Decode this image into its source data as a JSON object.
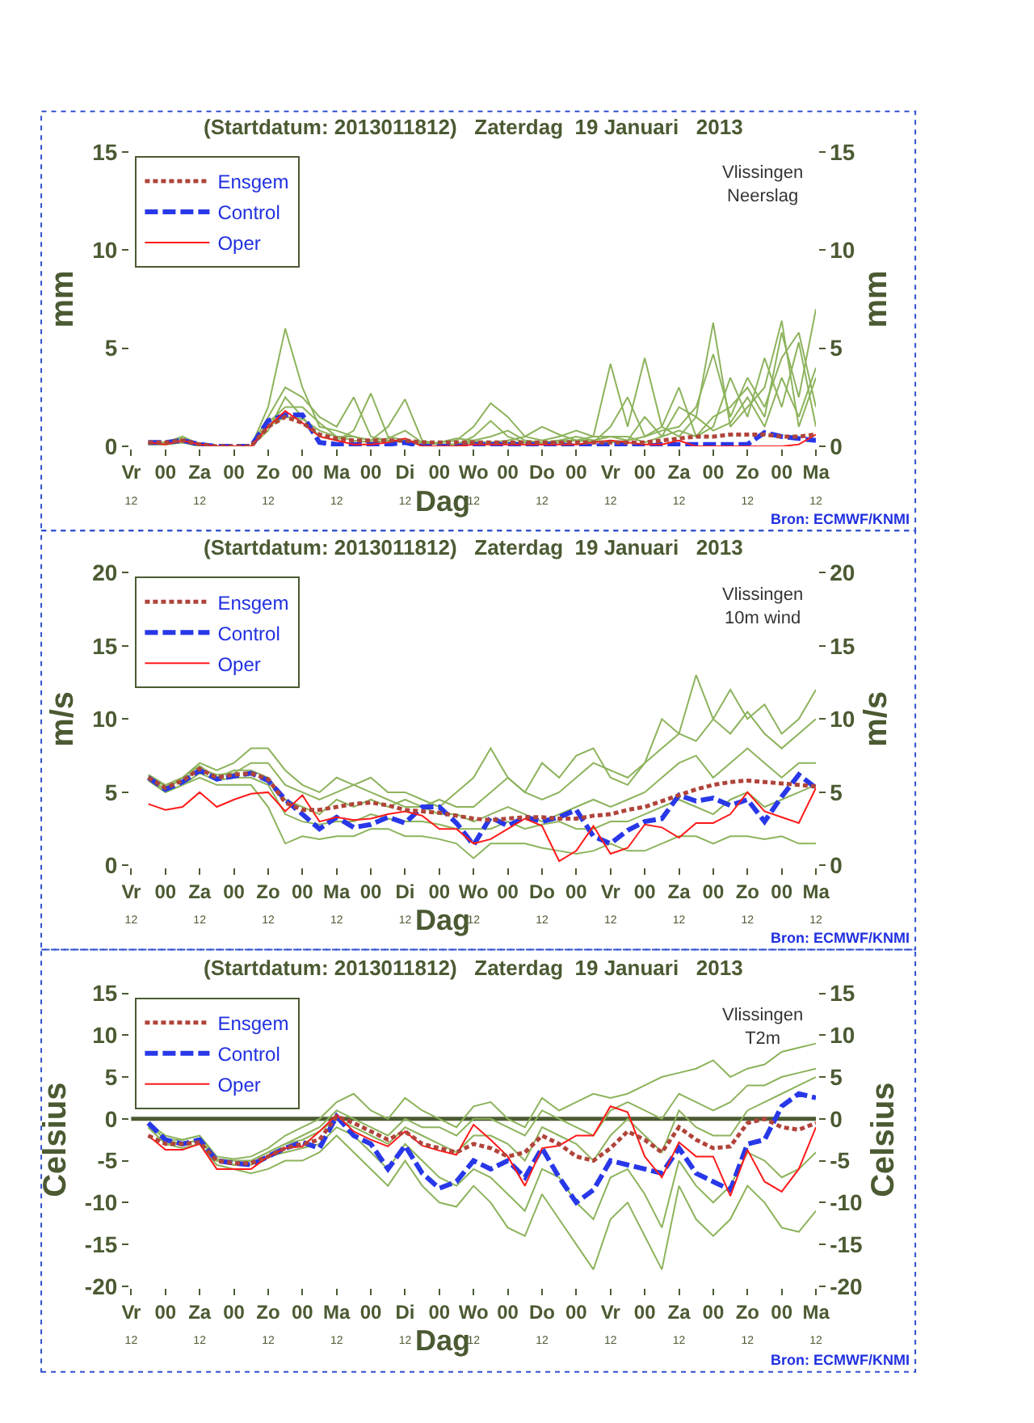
{
  "chart_data": [
    {
      "type": "line",
      "title": "(Startdatum: 2013011812)   Zaterdag  19 Januari   2013",
      "xlabel": "Dag",
      "ylabel": "mm",
      "y2label": "mm",
      "legend": "top left",
      "grid": false,
      "annotations": [
        "Vlissingen\nNeerslag",
        "Bron: ECMWF/KNMI"
      ],
      "categories": [
        "Vr\n12",
        null,
        "00",
        null,
        "Za\n12",
        null,
        "00",
        null,
        "Zo\n12",
        null,
        "00",
        null,
        "Ma\n12",
        null,
        "00",
        null,
        "Di\n12",
        null,
        "00",
        null,
        "Wo\n12",
        null,
        "00",
        null,
        "Do\n12",
        null,
        "00",
        null,
        "Vr\n12",
        null,
        "00",
        null,
        "Za\n12",
        null,
        "00",
        null,
        "Zo\n12",
        null,
        "00",
        null,
        "Ma\n12"
      ],
      "ylim": [
        0,
        15
      ],
      "yticks": [
        0,
        5,
        10,
        15
      ],
      "y2lim": [
        0,
        15
      ],
      "y2ticks": [
        0,
        5,
        10,
        15
      ],
      "series": [
        {
          "color": "#8db35c",
          "line_style": "solid",
          "values": [
            null,
            0.2,
            0.2,
            0.5,
            0.1,
            0,
            0,
            0,
            2,
            6,
            3,
            1,
            0.8,
            0.5,
            0.3,
            0.4,
            0.8,
            0.2,
            0.1,
            0.1,
            0.3,
            0.5,
            0.8,
            0.3,
            0.2,
            0.3,
            0.3,
            0.5,
            4.2,
            1,
            4.5,
            1,
            0.5,
            1.5,
            6.3,
            1,
            2,
            3,
            6.4,
            1,
            3.5
          ]
        },
        {
          "color": "#8db35c",
          "line_style": "solid",
          "values": [
            null,
            0.2,
            0.1,
            0.3,
            0.1,
            0,
            0,
            0,
            1.5,
            3,
            2.5,
            1.5,
            1,
            2.5,
            0.5,
            0.3,
            0.3,
            0.1,
            0.2,
            0.3,
            1,
            2.2,
            1.5,
            0.5,
            0.3,
            0.5,
            0.8,
            0.5,
            0.5,
            0.3,
            0.5,
            0.8,
            1,
            2,
            4.7,
            1.5,
            3.5,
            2,
            4.5,
            5.8,
            2
          ]
        },
        {
          "color": "#8db35c",
          "line_style": "solid",
          "values": [
            null,
            0.1,
            0.1,
            0.2,
            0,
            0,
            0,
            0,
            0.8,
            2.5,
            1.5,
            0.5,
            0.3,
            0.8,
            2.7,
            0.5,
            0.3,
            0.2,
            0.1,
            0.1,
            0.5,
            1.3,
            0.5,
            0.2,
            0.1,
            0.2,
            0.3,
            0.3,
            0.5,
            0.5,
            0.2,
            0.5,
            0.8,
            0.5,
            1.5,
            2,
            3,
            1.5,
            5.8,
            2.5,
            7
          ]
        },
        {
          "color": "#8db35c",
          "line_style": "solid",
          "values": [
            null,
            0.2,
            0.2,
            0.4,
            0.1,
            0,
            0,
            0,
            1.2,
            2,
            2,
            1.2,
            0.5,
            0.5,
            0.3,
            1,
            2.4,
            0.3,
            0.1,
            0.1,
            0.2,
            0.2,
            0.3,
            0.5,
            1,
            0.6,
            0.3,
            0.2,
            1,
            2.5,
            0.5,
            1,
            3,
            0.5,
            1,
            3.5,
            1.5,
            4.5,
            2,
            5.3,
            1
          ]
        },
        {
          "color": "#8db35c",
          "line_style": "solid",
          "values": [
            null,
            0.1,
            0.1,
            0.2,
            0.1,
            0,
            0,
            0,
            1,
            1.5,
            1.4,
            0.8,
            0.5,
            0.3,
            0.2,
            0.3,
            0.2,
            0.1,
            0.2,
            0.4,
            0.3,
            0.1,
            0.2,
            0.2,
            0.1,
            0.3,
            0.5,
            0.3,
            0.2,
            0.3,
            1.5,
            0.5,
            2,
            1.5,
            0.8,
            1.2,
            2.5,
            1,
            3.5,
            1.5,
            4
          ]
        },
        {
          "name": "Ensgem",
          "color": "#b0443a",
          "line_style": "dotted",
          "values": [
            null,
            0.2,
            0.2,
            0.3,
            0.1,
            0,
            0,
            0,
            1,
            1.5,
            1.2,
            0.6,
            0.4,
            0.3,
            0.3,
            0.3,
            0.3,
            0.2,
            0.2,
            0.2,
            0.2,
            0.2,
            0.2,
            0.2,
            0.2,
            0.2,
            0.2,
            0.2,
            0.2,
            0.2,
            0.2,
            0.3,
            0.4,
            0.5,
            0.5,
            0.6,
            0.6,
            0.6,
            0.5,
            0.5,
            0.6
          ]
        },
        {
          "name": "Control",
          "color": "#2838e8",
          "line_style": "dashed",
          "values": [
            null,
            0.2,
            0.2,
            0.3,
            0.1,
            0,
            0,
            0,
            1.3,
            1.6,
            1.6,
            0.2,
            0.1,
            0.1,
            0.1,
            0.1,
            0.2,
            0,
            0,
            0,
            0.1,
            0.1,
            0.1,
            0.1,
            0.1,
            0.1,
            0,
            0,
            0.1,
            0.1,
            0,
            0.1,
            0.1,
            0.1,
            0.1,
            0.1,
            0.1,
            0.7,
            0.5,
            0.4,
            0.3
          ]
        },
        {
          "name": "Oper",
          "color": "#ff1a1a",
          "line_style": "solid",
          "values": [
            null,
            0.2,
            0.1,
            0.3,
            0.1,
            0,
            0,
            0,
            1,
            1.8,
            1.2,
            0.5,
            0.3,
            0.1,
            0.1,
            0.2,
            0.4,
            0,
            0,
            0,
            0.1,
            0.1,
            0.1,
            0.1,
            0.1,
            0.1,
            0.1,
            0.2,
            0.3,
            0.2,
            0.1,
            0.1,
            0.3,
            0,
            0,
            0,
            0,
            0,
            0,
            0.1,
            0.6
          ]
        }
      ]
    },
    {
      "type": "line",
      "title": "(Startdatum: 2013011812)   Zaterdag  19 Januari   2013",
      "xlabel": "Dag",
      "ylabel": "m/s",
      "y2label": "m/s",
      "legend": "top left",
      "grid": false,
      "annotations": [
        "Vlissingen\n10m wind",
        "Bron: ECMWF/KNMI"
      ],
      "categories": [
        "Vr\n12",
        null,
        "00",
        null,
        "Za\n12",
        null,
        "00",
        null,
        "Zo\n12",
        null,
        "00",
        null,
        "Ma\n12",
        null,
        "00",
        null,
        "Di\n12",
        null,
        "00",
        null,
        "Wo\n12",
        null,
        "00",
        null,
        "Do\n12",
        null,
        "00",
        null,
        "Vr\n12",
        null,
        "00",
        null,
        "Za\n12",
        null,
        "00",
        null,
        "Zo\n12",
        null,
        "00",
        null,
        "Ma\n12"
      ],
      "ylim": [
        0,
        20
      ],
      "yticks": [
        0,
        5,
        10,
        15,
        20
      ],
      "y2lim": [
        0,
        20
      ],
      "y2ticks": [
        0,
        5,
        10,
        15,
        20
      ],
      "series": [
        {
          "color": "#8db35c",
          "line_style": "solid",
          "values": [
            null,
            6.2,
            5.5,
            6,
            7,
            6.5,
            7,
            8,
            8,
            6.5,
            5.5,
            5,
            6,
            5.5,
            6,
            5,
            5,
            4.5,
            4,
            5,
            6,
            8,
            6,
            5,
            7,
            6,
            7.5,
            8,
            6,
            5.5,
            7,
            10,
            9,
            13,
            10,
            12,
            10,
            11,
            9,
            10,
            12
          ]
        },
        {
          "color": "#8db35c",
          "line_style": "solid",
          "values": [
            null,
            5.8,
            5,
            5.5,
            6,
            5.5,
            5.5,
            5.5,
            4,
            1.5,
            2,
            1.8,
            2,
            2,
            2.5,
            2.5,
            2,
            2,
            1.8,
            1.5,
            0.5,
            1.5,
            1.5,
            1.5,
            1.2,
            1,
            0.8,
            1,
            1.5,
            1,
            1,
            1.5,
            2,
            2,
            1.5,
            2,
            2,
            1.8,
            2,
            1.5,
            1.5
          ]
        },
        {
          "color": "#8db35c",
          "line_style": "solid",
          "values": [
            null,
            6,
            5.2,
            6,
            6.8,
            6,
            6.5,
            6.5,
            6,
            4.5,
            4,
            3.5,
            4.5,
            4,
            4.5,
            4,
            4.5,
            4,
            3.5,
            3.5,
            3,
            3.5,
            4,
            3.5,
            3,
            3.5,
            4,
            4.5,
            4,
            4.5,
            5,
            6,
            7,
            7.5,
            6,
            7,
            8,
            7,
            6,
            7,
            7
          ]
        },
        {
          "color": "#8db35c",
          "line_style": "solid",
          "values": [
            null,
            6,
            5,
            5.5,
            6.3,
            5.8,
            6,
            6,
            5.5,
            3.5,
            3,
            2.8,
            3,
            3,
            3.5,
            3.2,
            3,
            3,
            2.8,
            2.5,
            2.5,
            2.5,
            3,
            2.5,
            2.8,
            3,
            2.5,
            2.5,
            3,
            3,
            3.5,
            4,
            4.5,
            4,
            3.5,
            4.5,
            5,
            4,
            4.5,
            5,
            5.5
          ]
        },
        {
          "color": "#8db35c",
          "line_style": "solid",
          "values": [
            null,
            6.1,
            5.4,
            5.8,
            6.6,
            6.2,
            6.3,
            7,
            7,
            5.5,
            5,
            4.5,
            5,
            5.5,
            5,
            4.5,
            4,
            4,
            4.5,
            4,
            4,
            5,
            6,
            5,
            4.5,
            5,
            6,
            7,
            6.5,
            6,
            7,
            8,
            9,
            8.5,
            10,
            9,
            10.5,
            9,
            8,
            9,
            10
          ]
        },
        {
          "name": "Ensgem",
          "color": "#b0443a",
          "line_style": "dotted",
          "values": [
            null,
            6,
            5.3,
            5.8,
            6.6,
            6,
            6.2,
            6.3,
            5.9,
            4.3,
            3.8,
            3.8,
            4,
            4.2,
            4.3,
            4.1,
            3.8,
            3.7,
            3.6,
            3.4,
            3.2,
            3.1,
            3.2,
            3.3,
            3.3,
            3.2,
            3.2,
            3.4,
            3.5,
            3.8,
            4,
            4.4,
            4.8,
            5.2,
            5.5,
            5.7,
            5.8,
            5.7,
            5.6,
            5.5,
            5.4
          ]
        },
        {
          "name": "Control",
          "color": "#2838e8",
          "line_style": "dashed",
          "values": [
            null,
            6,
            5.2,
            5.7,
            6.5,
            5.9,
            6.1,
            6.3,
            5.8,
            4.5,
            3.5,
            2.5,
            3.3,
            2.6,
            2.8,
            3.3,
            2.9,
            4,
            4,
            2.9,
            1.4,
            3.3,
            2.7,
            3.3,
            3,
            3.3,
            3.8,
            2,
            1.5,
            2.4,
            3,
            3.2,
            4.8,
            4.4,
            4.6,
            4.1,
            4.5,
            3,
            4.7,
            6.2,
            5.3
          ]
        },
        {
          "name": "Oper",
          "color": "#ff1a1a",
          "line_style": "solid",
          "values": [
            null,
            4.2,
            3.8,
            4,
            5,
            4,
            4.5,
            4.9,
            5,
            3.7,
            4.8,
            3,
            3.3,
            3.1,
            3.2,
            3.5,
            3.7,
            3.4,
            2.5,
            2.5,
            1.5,
            1.8,
            2.5,
            3.2,
            2.7,
            0.3,
            1,
            2.7,
            0.8,
            1.2,
            2.8,
            2.6,
            1.9,
            2.9,
            2.9,
            3.5,
            5,
            3.7,
            3.3,
            2.9,
            5.3
          ]
        }
      ]
    },
    {
      "type": "line",
      "title": "(Startdatum: 2013011812)   Zaterdag  19 Januari   2013",
      "xlabel": "Dag",
      "ylabel": "Celsius",
      "y2label": "Celsius",
      "legend": "top left",
      "grid": false,
      "annotations": [
        "Vlissingen\nT2m",
        "Bron: ECMWF/KNMI"
      ],
      "ref_lines": [
        {
          "axis": "y",
          "value": 0,
          "color": "#4b5a32"
        }
      ],
      "categories": [
        "Vr\n12",
        null,
        "00",
        null,
        "Za\n12",
        null,
        "00",
        null,
        "Zo\n12",
        null,
        "00",
        null,
        "Ma\n12",
        null,
        "00",
        null,
        "Di\n12",
        null,
        "00",
        null,
        "Wo\n12",
        null,
        "00",
        null,
        "Do\n12",
        null,
        "00",
        null,
        "Vr\n12",
        null,
        "00",
        null,
        "Za\n12",
        null,
        "00",
        null,
        "Zo\n12",
        null,
        "00",
        null,
        "Ma\n12"
      ],
      "ylim": [
        -20,
        15
      ],
      "yticks": [
        -20,
        -15,
        -10,
        -5,
        0,
        5,
        10,
        15
      ],
      "y2lim": [
        -20,
        15
      ],
      "y2ticks": [
        -20,
        -15,
        -10,
        -5,
        0,
        5,
        10,
        15
      ],
      "series": [
        {
          "color": "#8db35c",
          "line_style": "solid",
          "values": [
            null,
            -0.5,
            -2,
            -2.5,
            -2,
            -4.5,
            -4.8,
            -4.5,
            -3.5,
            -2,
            -1,
            0,
            2,
            3,
            1,
            0,
            2.5,
            1,
            0,
            -1,
            1.5,
            2,
            0,
            -1,
            2.5,
            1,
            2,
            3,
            2.5,
            3,
            4,
            5,
            5.5,
            6,
            7,
            5,
            6,
            6.5,
            8,
            8.5,
            9
          ]
        },
        {
          "color": "#8db35c",
          "line_style": "solid",
          "values": [
            null,
            -1,
            -3,
            -3.5,
            -3,
            -5.5,
            -6,
            -6.5,
            -6,
            -5,
            -5,
            -4,
            -2,
            -4,
            -6,
            -8,
            -5,
            -8,
            -10,
            -10.5,
            -8,
            -10,
            -13,
            -14,
            -9,
            -12,
            -15,
            -18,
            -12,
            -10,
            -14,
            -18,
            -8,
            -12,
            -14,
            -12,
            -8,
            -10,
            -13,
            -13.5,
            -11
          ]
        },
        {
          "color": "#8db35c",
          "line_style": "solid",
          "values": [
            null,
            -0.5,
            -2.5,
            -3,
            -2.5,
            -5,
            -5.5,
            -5,
            -4,
            -3,
            -2.5,
            -1.5,
            0,
            -1,
            -2,
            -3,
            -1,
            -2,
            -3,
            -4,
            -2,
            -2,
            -3,
            -5,
            -1,
            -2,
            -3,
            -5,
            -2,
            0,
            -2,
            -4,
            1,
            -1,
            -2,
            -2,
            1,
            2,
            3,
            4,
            5
          ]
        },
        {
          "color": "#8db35c",
          "line_style": "solid",
          "values": [
            null,
            -1,
            -3,
            -3,
            -2.5,
            -5,
            -5.5,
            -5.5,
            -4.5,
            -4,
            -3.5,
            -3,
            -1,
            -2,
            -4,
            -6,
            -3,
            -5,
            -7,
            -8,
            -6,
            -7,
            -9,
            -11,
            -6,
            -7,
            -10,
            -12,
            -7,
            -6,
            -9,
            -13,
            -5,
            -8,
            -10,
            -8,
            -4,
            -5,
            -7,
            -6,
            -4
          ]
        },
        {
          "color": "#8db35c",
          "line_style": "solid",
          "values": [
            null,
            -0.5,
            -2.5,
            -2.5,
            -2,
            -4.8,
            -5,
            -5,
            -4,
            -3,
            -2,
            -1,
            1,
            0,
            -1,
            -2,
            0,
            -1,
            -1,
            -2,
            0,
            0,
            -1,
            -2,
            1,
            0,
            -1,
            -2,
            1,
            2,
            1,
            0,
            3,
            2,
            1,
            2,
            4,
            4,
            5,
            5.5,
            6
          ]
        },
        {
          "name": "Ensgem",
          "color": "#b0443a",
          "line_style": "dotted",
          "values": [
            null,
            -2,
            -3,
            -3,
            -2.8,
            -5,
            -5.3,
            -5.3,
            -4.5,
            -3.5,
            -3,
            -2.5,
            0.3,
            -0.5,
            -1.5,
            -2.5,
            -1.5,
            -3,
            -3.5,
            -4,
            -3,
            -3.5,
            -4.5,
            -4,
            -2,
            -3,
            -4.5,
            -5,
            -3.5,
            -1.5,
            -2.5,
            -4,
            -1,
            -2.5,
            -3.5,
            -3.3,
            -0.5,
            0,
            -1,
            -1.3,
            -0.5
          ]
        },
        {
          "name": "Control",
          "color": "#2838e8",
          "line_style": "dashed",
          "values": [
            null,
            -0.5,
            -2.5,
            -3,
            -2.5,
            -5,
            -5.3,
            -5.5,
            -4.5,
            -3.5,
            -2.8,
            -3.5,
            0.3,
            -2,
            -3,
            -6,
            -3.2,
            -6.5,
            -8.3,
            -7.5,
            -5,
            -6,
            -5,
            -7,
            -3.5,
            -7,
            -10,
            -8.5,
            -5,
            -5.5,
            -6,
            -6.5,
            -3.5,
            -6.5,
            -7.5,
            -8.5,
            -3,
            -2.5,
            1.5,
            3,
            2.5
          ]
        },
        {
          "name": "Oper",
          "color": "#ff1a1a",
          "line_style": "solid",
          "values": [
            null,
            -2,
            -3.7,
            -3.7,
            -3,
            -6,
            -6,
            -6,
            -4.5,
            -3.5,
            -3.3,
            -1.5,
            0.5,
            -1.5,
            -2.5,
            -3.3,
            -1.5,
            -3.2,
            -3.8,
            -4.3,
            -0.7,
            -2.5,
            -4.5,
            -8,
            -3.5,
            -3.2,
            -2,
            -2,
            1.5,
            0.8,
            -4.5,
            -7,
            -2.8,
            -4.5,
            -4.5,
            -9.2,
            -3.7,
            -7.5,
            -8.7,
            -6,
            -1
          ]
        }
      ]
    }
  ]
}
